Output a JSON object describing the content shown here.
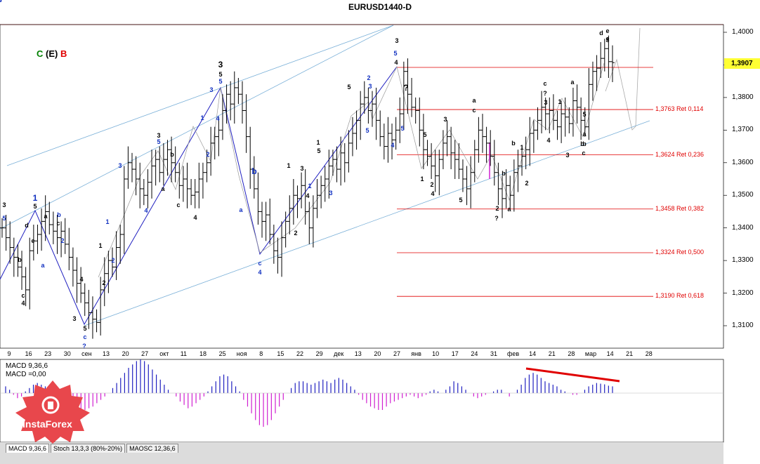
{
  "window": {
    "title": "EURUSD1440-D"
  },
  "scenario": {
    "c": "C",
    "e": "(E)",
    "b": "B",
    "c_color": "#008000",
    "e_color": "#000000",
    "b_color": "#e00000"
  },
  "current_price": "1,3907",
  "chart_data": {
    "type": "candlestick",
    "symbol": "EURUSD",
    "timeframe": "D1",
    "ylim": [
      1.305,
      1.406
    ],
    "y_ticks": [
      "1,4000",
      "1,3900",
      "1,3800",
      "1,3700",
      "1,3600",
      "1,3500",
      "1,3400",
      "1,3300",
      "1,3200",
      "1,3100"
    ],
    "x_ticks": [
      "9",
      "16",
      "23",
      "30",
      "сен",
      "13",
      "20",
      "27",
      "окт",
      "11",
      "18",
      "25",
      "ноя",
      "8",
      "15",
      "22",
      "29",
      "дек",
      "13",
      "20",
      "27",
      "янв",
      "10",
      "17",
      "24",
      "31",
      "фев",
      "14",
      "21",
      "28",
      "мар",
      "14",
      "21",
      "28"
    ],
    "fib_levels": [
      {
        "label": "1,3763 Ret 0,114",
        "value": 1.3763
      },
      {
        "label": "1,3624 Ret 0,236",
        "value": 1.3624
      },
      {
        "label": "1,3458 Ret 0,382",
        "value": 1.3458
      },
      {
        "label": "1,3324 Ret 0,500",
        "value": 1.3324
      },
      {
        "label": "1,3190 Ret 0,618",
        "value": 1.319
      }
    ],
    "close_path": [
      1.34,
      1.337,
      1.334,
      1.331,
      1.328,
      1.325,
      1.321,
      1.333,
      1.336,
      1.338,
      1.342,
      1.345,
      1.341,
      1.339,
      1.337,
      1.339,
      1.335,
      1.331,
      1.327,
      1.323,
      1.32,
      1.317,
      1.314,
      1.312,
      1.311,
      1.321,
      1.326,
      1.33,
      1.328,
      1.334,
      1.338,
      1.355,
      1.36,
      1.358,
      1.355,
      1.352,
      1.35,
      1.354,
      1.359,
      1.361,
      1.357,
      1.361,
      1.364,
      1.36,
      1.357,
      1.353,
      1.355,
      1.352,
      1.35,
      1.351,
      1.355,
      1.357,
      1.36,
      1.366,
      1.368,
      1.37,
      1.376,
      1.381,
      1.378,
      1.383,
      1.381,
      1.376,
      1.368,
      1.358,
      1.352,
      1.345,
      1.342,
      1.344,
      1.338,
      1.333,
      1.331,
      1.337,
      1.342,
      1.346,
      1.35,
      1.349,
      1.353,
      1.345,
      1.34,
      1.346,
      1.35,
      1.353,
      1.355,
      1.359,
      1.361,
      1.358,
      1.363,
      1.36,
      1.366,
      1.369,
      1.373,
      1.378,
      1.38,
      1.376,
      1.378,
      1.373,
      1.368,
      1.365,
      1.369,
      1.367,
      1.37,
      1.375,
      1.388,
      1.381,
      1.377,
      1.376,
      1.37,
      1.364,
      1.362,
      1.359,
      1.356,
      1.361,
      1.366,
      1.368,
      1.363,
      1.361,
      1.358,
      1.355,
      1.352,
      1.357,
      1.364,
      1.37,
      1.368,
      1.366,
      1.362,
      1.357,
      1.352,
      1.349,
      1.353,
      1.35,
      1.357,
      1.359,
      1.362,
      1.364,
      1.369,
      1.37,
      1.373,
      1.377,
      1.375,
      1.376,
      1.373,
      1.371,
      1.375,
      1.374,
      1.372,
      1.379,
      1.377,
      1.373,
      1.371,
      1.384,
      1.388,
      1.389,
      1.392,
      1.395,
      1.391,
      1.3907
    ],
    "macd": {
      "label": "MACD 9,36,6",
      "value_label": "MACD =0,00",
      "trend_line_color": "#e00000",
      "values": [
        0.2,
        0.1,
        -0.05,
        -0.15,
        -0.1,
        0.05,
        0.15,
        0.25,
        0.3,
        0.25,
        0.2,
        0.1,
        0.05,
        -0.1,
        -0.2,
        -0.3,
        -0.35,
        -0.4,
        -0.45,
        -0.5,
        -0.5,
        -0.45,
        -0.4,
        -0.3,
        -0.2,
        -0.1,
        0.0,
        0.15,
        0.3,
        0.45,
        0.6,
        0.75,
        0.85,
        0.95,
        1.0,
        0.95,
        0.85,
        0.7,
        0.55,
        0.4,
        0.25,
        0.1,
        0.0,
        -0.1,
        -0.25,
        -0.35,
        -0.45,
        -0.4,
        -0.3,
        -0.2,
        -0.1,
        0.05,
        0.2,
        0.35,
        0.5,
        0.55,
        0.5,
        0.35,
        0.2,
        0.05,
        -0.2,
        -0.4,
        -0.6,
        -0.8,
        -0.95,
        -1.0,
        -0.95,
        -0.8,
        -0.6,
        -0.4,
        -0.2,
        0.0,
        0.15,
        0.3,
        0.35,
        0.35,
        0.3,
        0.25,
        0.3,
        0.35,
        0.4,
        0.35,
        0.3,
        0.4,
        0.45,
        0.4,
        0.3,
        0.2,
        0.1,
        -0.05,
        -0.2,
        -0.3,
        -0.4,
        -0.45,
        -0.5,
        -0.5,
        -0.4,
        -0.3,
        -0.25,
        -0.2,
        -0.15,
        -0.1,
        -0.05,
        -0.1,
        -0.15,
        -0.1,
        -0.05,
        0.05,
        0.1,
        0.05,
        0.0,
        0.1,
        0.2,
        0.35,
        0.3,
        0.2,
        0.1,
        0.0,
        -0.1,
        -0.15,
        -0.1,
        -0.05,
        0.0,
        0.05,
        0.1,
        0.1,
        0.0,
        -0.1,
        0.0,
        0.1,
        0.25,
        0.45,
        0.55,
        0.6,
        0.55,
        0.45,
        0.35,
        0.3,
        0.25,
        0.2,
        0.1,
        0.05,
        0.0,
        -0.05,
        -0.05,
        0.0,
        0.1,
        0.2,
        0.25,
        0.3,
        0.28,
        0.26,
        0.22,
        0.2
      ]
    }
  },
  "wave_labels": [
    {
      "t": "3",
      "c": "b"
    },
    {
      "t": "5",
      "c": "u"
    },
    {
      "t": "d",
      "c": "b"
    },
    {
      "t": "e",
      "c": "b"
    },
    {
      "t": "b",
      "c": "b"
    },
    {
      "t": "c",
      "c": "b"
    },
    {
      "t": "4",
      "c": "b"
    },
    {
      "t": "1",
      "c": "u"
    },
    {
      "t": "5",
      "c": "b"
    },
    {
      "t": "a",
      "c": "b"
    },
    {
      "t": "b",
      "c": "u"
    },
    {
      "t": "c",
      "c": "b"
    },
    {
      "t": "a",
      "c": "u"
    },
    {
      "t": "2",
      "c": "u"
    },
    {
      "t": "4",
      "c": "b"
    },
    {
      "t": "3",
      "c": "b"
    },
    {
      "t": "5",
      "c": "b"
    },
    {
      "t": "c",
      "c": "u"
    },
    {
      "t": "?",
      "c": "u"
    },
    {
      "t": "1",
      "c": "b"
    },
    {
      "t": "2",
      "c": "b"
    },
    {
      "t": "1",
      "c": "u"
    },
    {
      "t": "2",
      "c": "u"
    },
    {
      "t": "3",
      "c": "u"
    },
    {
      "t": "4",
      "c": "u"
    },
    {
      "t": "3",
      "c": "b"
    },
    {
      "t": "5",
      "c": "u"
    },
    {
      "t": "a",
      "c": "b"
    },
    {
      "t": "b",
      "c": "b"
    },
    {
      "t": "c",
      "c": "b"
    },
    {
      "t": "4",
      "c": "b"
    },
    {
      "t": "1",
      "c": "u"
    },
    {
      "t": "2",
      "c": "u"
    },
    {
      "t": "3",
      "c": "u"
    },
    {
      "t": "3",
      "c": "b"
    },
    {
      "t": "5",
      "c": "b"
    },
    {
      "t": "5",
      "c": "u"
    },
    {
      "t": "4",
      "c": "u"
    },
    {
      "t": "a",
      "c": "u"
    },
    {
      "t": "b",
      "c": "u"
    },
    {
      "t": "c",
      "c": "u"
    },
    {
      "t": "4",
      "c": "u"
    },
    {
      "t": "1",
      "c": "b"
    },
    {
      "t": "3",
      "c": "b"
    },
    {
      "t": "2",
      "c": "b"
    },
    {
      "t": "4",
      "c": "b"
    },
    {
      "t": "5",
      "c": "b"
    },
    {
      "t": "1",
      "c": "b"
    },
    {
      "t": "1",
      "c": "u"
    },
    {
      "t": "3",
      "c": "u"
    },
    {
      "t": "5",
      "c": "b"
    },
    {
      "t": "2",
      "c": "u"
    },
    {
      "t": "3",
      "c": "u"
    },
    {
      "t": "5",
      "c": "u"
    },
    {
      "t": "4",
      "c": "u"
    },
    {
      "t": "3",
      "c": "b"
    },
    {
      "t": "5",
      "c": "u"
    },
    {
      "t": "4",
      "c": "b"
    },
    {
      "t": "?",
      "c": "b"
    },
    {
      "t": "5",
      "c": "u"
    },
    {
      "t": "5",
      "c": "b"
    },
    {
      "t": "1",
      "c": "b"
    },
    {
      "t": "2",
      "c": "b"
    },
    {
      "t": "4",
      "c": "b"
    },
    {
      "t": "3",
      "c": "b"
    },
    {
      "t": "5",
      "c": "b"
    },
    {
      "t": "a",
      "c": "b"
    },
    {
      "t": "c",
      "c": "b"
    },
    {
      "t": "b",
      "c": "b"
    },
    {
      "t": "a",
      "c": "b"
    },
    {
      "t": "b",
      "c": "b"
    },
    {
      "t": "1",
      "c": "b"
    },
    {
      "t": "2",
      "c": "b"
    },
    {
      "t": "c",
      "c": "b"
    },
    {
      "t": "?",
      "c": "b"
    },
    {
      "t": "3",
      "c": "b"
    },
    {
      "t": "4",
      "c": "b"
    },
    {
      "t": "1",
      "c": "b"
    },
    {
      "t": "a",
      "c": "b"
    },
    {
      "t": "5",
      "c": "b"
    },
    {
      "t": "3",
      "c": "b"
    },
    {
      "t": "a",
      "c": "b"
    },
    {
      "t": "b",
      "c": "b"
    },
    {
      "t": "c",
      "c": "b"
    },
    {
      "t": "d",
      "c": "b"
    },
    {
      "t": "e",
      "c": "b"
    },
    {
      "t": "e",
      "c": "b"
    },
    {
      "t": "b",
      "c": "b"
    },
    {
      "t": "2",
      "c": "b"
    },
    {
      "t": "?",
      "c": "b"
    },
    {
      "t": "3",
      "c": "b"
    },
    {
      "t": "c",
      "c": "b"
    },
    {
      "t": "3",
      "c": "u"
    },
    {
      "t": "5",
      "c": "u"
    },
    {
      "t": "3",
      "c": "u"
    }
  ],
  "indicator_tabs": [
    "MACD 9,36,6",
    "Stoch 13,3,3 (80%-20%)",
    "MAOSC 12,36,6"
  ],
  "logo": {
    "text": "InstaForex",
    "color": "#e8474c"
  }
}
